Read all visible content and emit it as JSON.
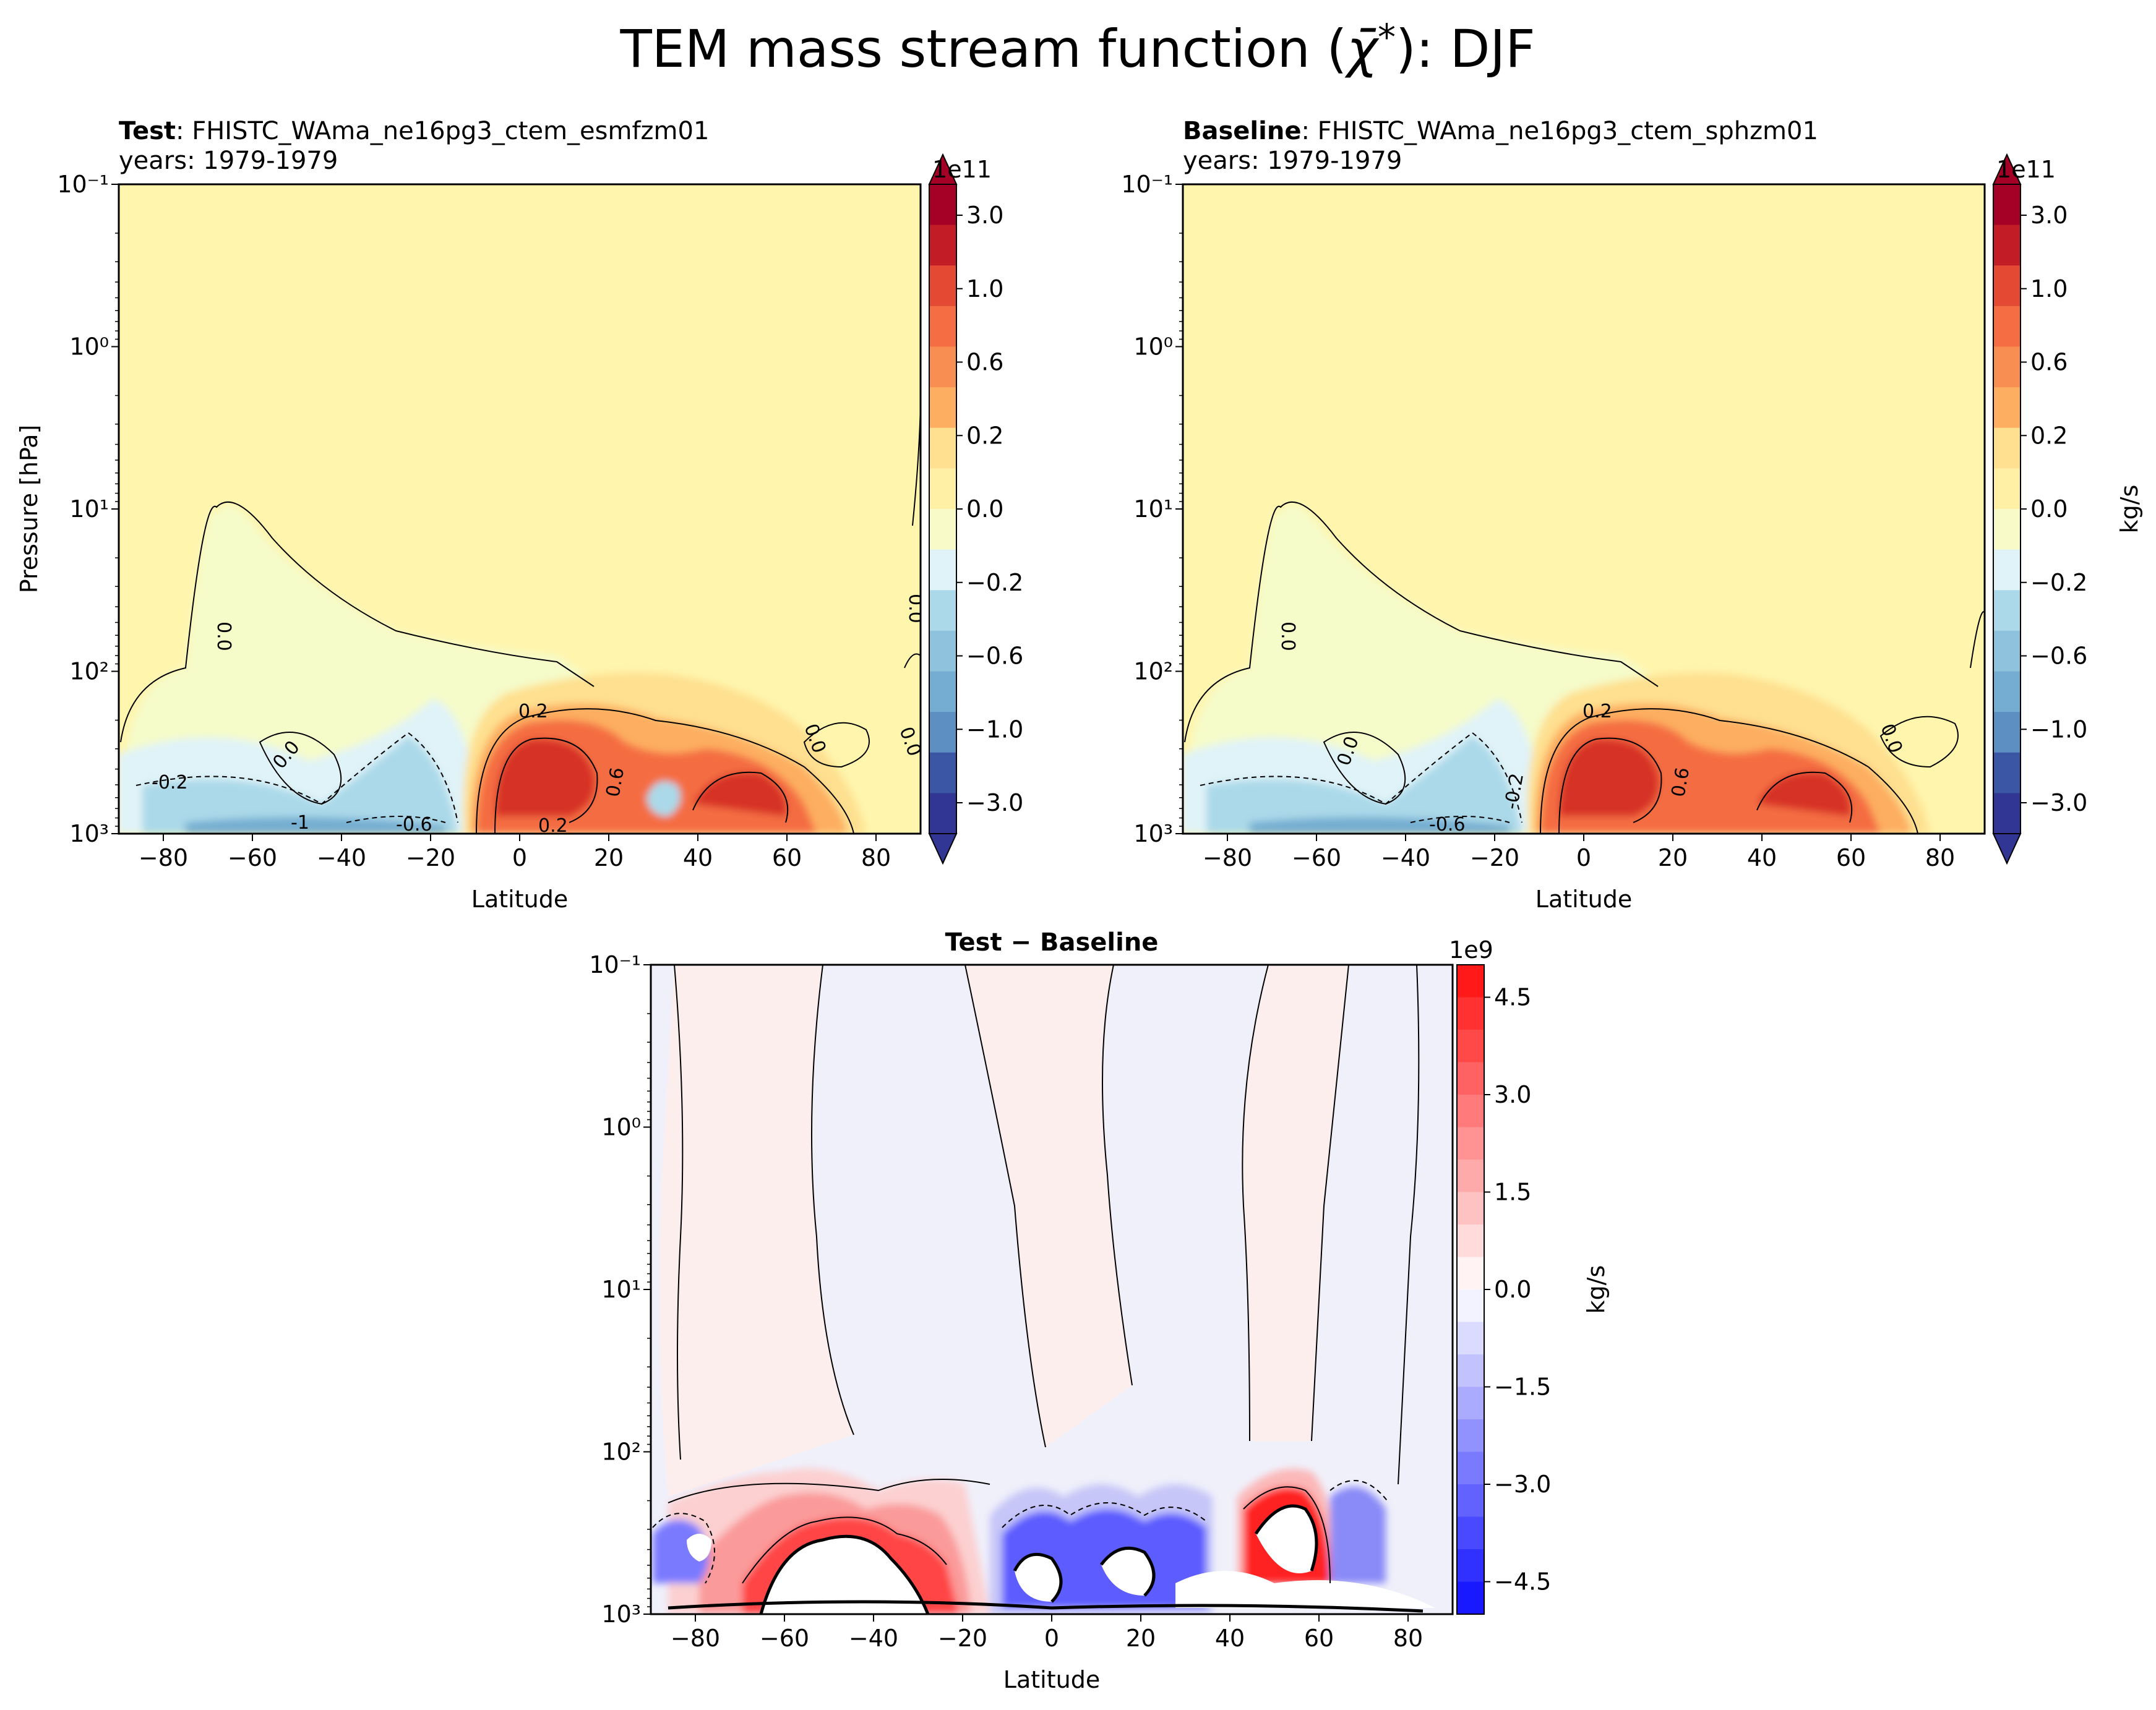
{
  "figure": {
    "title_prefix": "TEM mass stream function (",
    "title_symbol": "χ̄",
    "title_sup": "*",
    "title_suffix": "): DJF"
  },
  "panels": {
    "test": {
      "label_bold": "Test",
      "label_rest": ": FHISTC_WAma_ne16pg3_ctem_esmfzm01",
      "years": "years: 1979-1979",
      "scale": "1e11"
    },
    "baseline": {
      "label_bold": "Baseline",
      "label_rest": ": FHISTC_WAma_ne16pg3_ctem_sphzm01",
      "years": "years: 1979-1979",
      "scale": "1e11"
    },
    "diff": {
      "title": "Test − Baseline",
      "scale": "1e9"
    }
  },
  "colors": {
    "diverging": [
      "#313695",
      "#4575b4",
      "#74add1",
      "#abd9e9",
      "#e0f3f8",
      "#ffffbf",
      "#fee090",
      "#fdae61",
      "#f46d43",
      "#d73027",
      "#a50026"
    ],
    "bwr_neg": "#0000ff",
    "bwr_pos": "#ff0000",
    "pale_yellow": "#fff5ad"
  },
  "chart_data": [
    {
      "id": "test",
      "type": "heatmap",
      "subtype": "filled contour",
      "title": "Test: FHISTC_WAma_ne16pg3_ctem_esmfzm01",
      "xlabel": "Latitude",
      "ylabel": "Pressure [hPa]",
      "xlim": [
        -90,
        90
      ],
      "ylim": [
        1000,
        0.1
      ],
      "yscale": "log",
      "xticks": [
        -80,
        -60,
        -40,
        -20,
        0,
        20,
        40,
        60,
        80
      ],
      "yticks": [
        "10⁻¹",
        "10⁰",
        "10¹",
        "10²",
        "10³"
      ],
      "colorbar": {
        "scale": "1e11",
        "unit": "",
        "levels": [
          -3.0,
          -1.0,
          -0.6,
          -0.2,
          0.0,
          0.2,
          0.6,
          1.0,
          3.0
        ],
        "labels": [
          "3.0",
          "1.0",
          "0.6",
          "0.2",
          "0.0",
          "−0.2",
          "−0.6",
          "−1.0",
          "−3.0"
        ],
        "extend": "both"
      },
      "contour_labels": [
        "0.0",
        "-0.2",
        "0.0",
        "0.2",
        "0.6",
        "0.0",
        "0.0",
        "0.0",
        "-0.6",
        "0.2",
        "-1"
      ],
      "features": [
        {
          "name": "NH positive cell",
          "lat_range": [
            -15,
            70
          ],
          "p_range": [
            1000,
            100
          ],
          "peak": 1.5
        },
        {
          "name": "SH negative cell",
          "lat_range": [
            -90,
            -10
          ],
          "p_range": [
            1000,
            300
          ],
          "peak": -1.0
        },
        {
          "name": "Stratospheric weak negative",
          "lat_range": [
            -70,
            30
          ],
          "p_range": [
            300,
            8
          ],
          "peak": -0.1
        }
      ]
    },
    {
      "id": "baseline",
      "type": "heatmap",
      "subtype": "filled contour",
      "title": "Baseline: FHISTC_WAma_ne16pg3_ctem_sphzm01",
      "xlabel": "Latitude",
      "ylabel": "",
      "xlim": [
        -90,
        90
      ],
      "ylim": [
        1000,
        0.1
      ],
      "yscale": "log",
      "xticks": [
        -80,
        -60,
        -40,
        -20,
        0,
        20,
        40,
        60,
        80
      ],
      "yticks": [
        "10⁻¹",
        "10⁰",
        "10¹",
        "10²",
        "10³"
      ],
      "colorbar": {
        "scale": "1e11",
        "unit": "kg/s",
        "levels": [
          -3.0,
          -1.0,
          -0.6,
          -0.2,
          0.0,
          0.2,
          0.6,
          1.0,
          3.0
        ],
        "labels": [
          "3.0",
          "1.0",
          "0.6",
          "0.2",
          "0.0",
          "−0.2",
          "−0.6",
          "−1.0",
          "−3.0"
        ],
        "extend": "both"
      },
      "contour_labels": [
        "0.0",
        "0.2",
        "0.0",
        "0.6",
        "-0.2",
        "0.0",
        "-0.6"
      ],
      "features": [
        {
          "name": "NH positive cell",
          "lat_range": [
            -15,
            70
          ],
          "p_range": [
            1000,
            100
          ],
          "peak": 1.5
        },
        {
          "name": "SH negative cell",
          "lat_range": [
            -90,
            -10
          ],
          "p_range": [
            1000,
            300
          ],
          "peak": -1.0
        },
        {
          "name": "Stratospheric weak negative",
          "lat_range": [
            -70,
            30
          ],
          "p_range": [
            300,
            8
          ],
          "peak": -0.1
        }
      ]
    },
    {
      "id": "diff",
      "type": "heatmap",
      "subtype": "filled contour",
      "title": "Test − Baseline",
      "xlabel": "Latitude",
      "ylabel": "",
      "xlim": [
        -90,
        90
      ],
      "ylim": [
        1000,
        0.1
      ],
      "yscale": "log",
      "xticks": [
        -80,
        -60,
        -40,
        -20,
        0,
        20,
        40,
        60,
        80
      ],
      "yticks": [
        "10⁻¹",
        "10⁰",
        "10¹",
        "10²",
        "10³"
      ],
      "colorbar": {
        "scale": "1e9",
        "unit": "kg/s",
        "range": [
          -5.0,
          5.0
        ],
        "labels": [
          "4.5",
          "3.0",
          "1.5",
          "0.0",
          "−1.5",
          "−3.0",
          "−4.5"
        ],
        "label_values": [
          4.5,
          3.0,
          1.5,
          0.0,
          -1.5,
          -3.0,
          -4.5
        ]
      },
      "features": [
        {
          "name": "SH positive band",
          "lat_range": [
            -75,
            -20
          ],
          "p_range": [
            1000,
            200
          ],
          "peak": 5.0
        },
        {
          "name": "Tropical negative cells",
          "lat_range": [
            -25,
            35
          ],
          "p_range": [
            1000,
            200
          ],
          "peak": -5.0
        },
        {
          "name": "NH positive cell",
          "lat_range": [
            38,
            62
          ],
          "p_range": [
            1000,
            150
          ],
          "peak": 5.0
        },
        {
          "name": "Upper-level stripes",
          "lat_range": [
            -90,
            90
          ],
          "p_range": [
            300,
            0.1
          ],
          "peak": 0.2
        }
      ]
    }
  ]
}
